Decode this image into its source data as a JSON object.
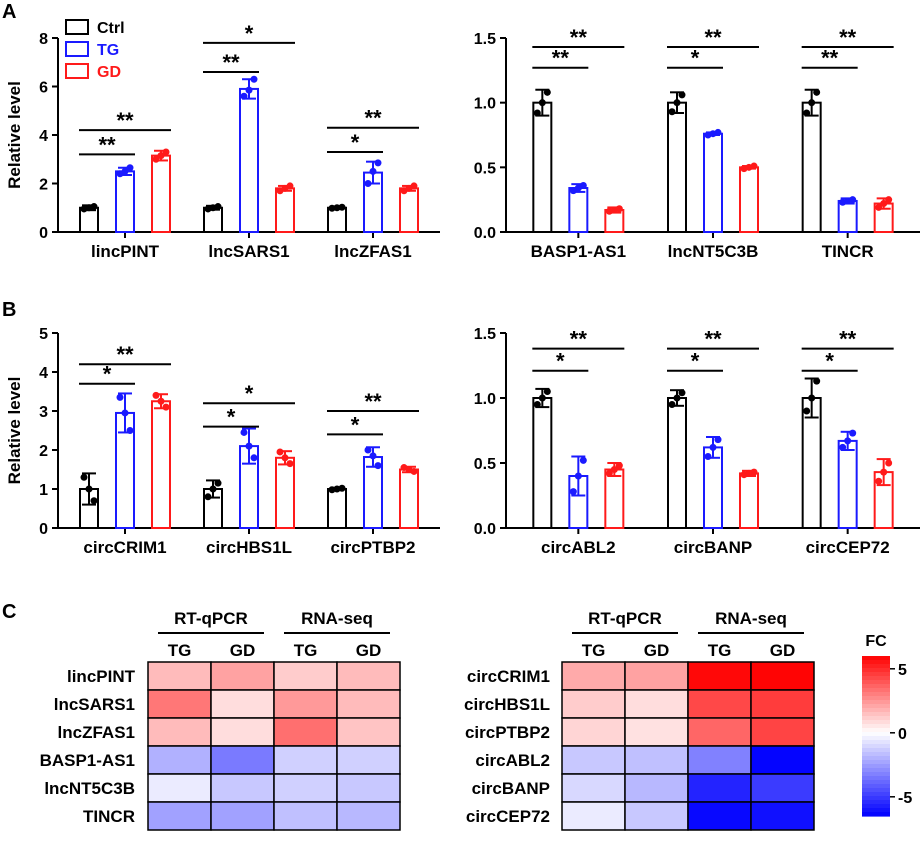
{
  "panels": {
    "a": "A",
    "b": "B",
    "c": "C"
  },
  "legend": {
    "items": [
      {
        "label": "Ctrl",
        "color": "#000000"
      },
      {
        "label": "TG",
        "color": "#1a1aff"
      },
      {
        "label": "GD",
        "color": "#ff1a1a"
      }
    ]
  },
  "chart_data": [
    {
      "type": "bar",
      "panel": "A",
      "side": "left",
      "ylabel": "Relative level",
      "ylim": [
        0,
        8
      ],
      "yticks": [
        "0",
        "2",
        "4",
        "6",
        "8"
      ],
      "categories": [
        "lincPINT",
        "lncSARS1",
        "lncZFAS1"
      ],
      "series": [
        {
          "name": "Ctrl",
          "values": [
            1.0,
            1.0,
            1.0
          ],
          "errors": [
            0.1,
            0.08,
            0.05
          ],
          "points": [
            [
              0.95,
              1.05,
              1.0
            ],
            [
              0.95,
              1.05,
              1.0
            ],
            [
              0.98,
              1.02,
              1.0
            ]
          ]
        },
        {
          "name": "TG",
          "values": [
            2.5,
            5.9,
            2.45
          ],
          "errors": [
            0.15,
            0.4,
            0.45
          ],
          "points": [
            [
              2.4,
              2.65,
              2.5
            ],
            [
              5.6,
              6.3,
              5.85
            ],
            [
              2.0,
              2.85,
              2.5
            ]
          ]
        },
        {
          "name": "GD",
          "values": [
            3.15,
            1.8,
            1.8
          ],
          "errors": [
            0.2,
            0.1,
            0.1
          ],
          "points": [
            [
              3.0,
              3.3,
              3.15
            ],
            [
              1.7,
              1.9,
              1.8
            ],
            [
              1.7,
              1.9,
              1.8
            ]
          ]
        }
      ],
      "significance": [
        {
          "cat": 0,
          "from": 0,
          "to": 1,
          "level": 3.2,
          "label": "**"
        },
        {
          "cat": 0,
          "from": 0,
          "to": 2,
          "level": 4.2,
          "label": "**"
        },
        {
          "cat": 1,
          "from": 0,
          "to": 1,
          "level": 6.6,
          "label": "**"
        },
        {
          "cat": 1,
          "from": 0,
          "to": 2,
          "level": 7.8,
          "label": "*"
        },
        {
          "cat": 2,
          "from": 0,
          "to": 1,
          "level": 3.3,
          "label": "*"
        },
        {
          "cat": 2,
          "from": 0,
          "to": 2,
          "level": 4.3,
          "label": "**"
        }
      ]
    },
    {
      "type": "bar",
      "panel": "A",
      "side": "right",
      "ylabel": "",
      "ylim": [
        0,
        1.5
      ],
      "yticks": [
        "0.0",
        "0.5",
        "1.0",
        "1.5"
      ],
      "categories": [
        "BASP1-AS1",
        "lncNT5C3B",
        "TINCR"
      ],
      "series": [
        {
          "name": "Ctrl",
          "values": [
            1.0,
            1.0,
            1.0
          ],
          "errors": [
            0.1,
            0.08,
            0.1
          ],
          "points": [
            [
              0.92,
              1.08,
              1.0
            ],
            [
              0.93,
              1.06,
              1.0
            ],
            [
              0.92,
              1.08,
              1.0
            ]
          ]
        },
        {
          "name": "TG",
          "values": [
            0.34,
            0.76,
            0.24
          ],
          "errors": [
            0.03,
            0.01,
            0.02
          ],
          "points": [
            [
              0.32,
              0.36,
              0.34
            ],
            [
              0.75,
              0.77,
              0.76
            ],
            [
              0.23,
              0.25,
              0.24
            ]
          ]
        },
        {
          "name": "GD",
          "values": [
            0.17,
            0.5,
            0.22
          ],
          "errors": [
            0.02,
            0.01,
            0.04
          ],
          "points": [
            [
              0.16,
              0.18,
              0.17
            ],
            [
              0.49,
              0.51,
              0.5
            ],
            [
              0.19,
              0.25,
              0.22
            ]
          ]
        }
      ],
      "significance": [
        {
          "cat": 0,
          "from": 0,
          "to": 1,
          "level": 1.27,
          "label": "**"
        },
        {
          "cat": 0,
          "from": 0,
          "to": 2,
          "level": 1.43,
          "label": "**"
        },
        {
          "cat": 1,
          "from": 0,
          "to": 1,
          "level": 1.27,
          "label": "*"
        },
        {
          "cat": 1,
          "from": 0,
          "to": 2,
          "level": 1.43,
          "label": "**"
        },
        {
          "cat": 2,
          "from": 0,
          "to": 1,
          "level": 1.27,
          "label": "**"
        },
        {
          "cat": 2,
          "from": 0,
          "to": 2,
          "level": 1.43,
          "label": "**"
        }
      ]
    },
    {
      "type": "bar",
      "panel": "B",
      "side": "left",
      "ylabel": "Relative level",
      "ylim": [
        0,
        5
      ],
      "yticks": [
        "0",
        "1",
        "2",
        "3",
        "4",
        "5"
      ],
      "categories": [
        "circCRIM1",
        "circHBS1L",
        "circPTBP2"
      ],
      "series": [
        {
          "name": "Ctrl",
          "values": [
            1.0,
            1.0,
            1.0
          ],
          "errors": [
            0.4,
            0.22,
            0.03
          ],
          "points": [
            [
              1.3,
              0.7,
              1.0
            ],
            [
              0.8,
              1.15,
              1.0
            ],
            [
              0.98,
              1.02,
              1.0
            ]
          ]
        },
        {
          "name": "TG",
          "values": [
            2.95,
            2.1,
            1.82
          ],
          "errors": [
            0.5,
            0.45,
            0.25
          ],
          "points": [
            [
              3.35,
              2.5,
              2.95
            ],
            [
              2.45,
              1.8,
              2.1
            ],
            [
              2.0,
              1.6,
              1.85
            ]
          ]
        },
        {
          "name": "GD",
          "values": [
            3.25,
            1.8,
            1.5
          ],
          "errors": [
            0.18,
            0.17,
            0.07
          ],
          "points": [
            [
              3.4,
              3.1,
              3.25
            ],
            [
              1.95,
              1.65,
              1.8
            ],
            [
              1.55,
              1.45,
              1.5
            ]
          ]
        }
      ],
      "significance": [
        {
          "cat": 0,
          "from": 0,
          "to": 1,
          "level": 3.7,
          "label": "*"
        },
        {
          "cat": 0,
          "from": 0,
          "to": 2,
          "level": 4.2,
          "label": "**"
        },
        {
          "cat": 1,
          "from": 0,
          "to": 1,
          "level": 2.6,
          "label": "*"
        },
        {
          "cat": 1,
          "from": 0,
          "to": 2,
          "level": 3.2,
          "label": "*"
        },
        {
          "cat": 2,
          "from": 0,
          "to": 1,
          "level": 2.4,
          "label": "*"
        },
        {
          "cat": 2,
          "from": 0,
          "to": 2,
          "level": 3.0,
          "label": "**"
        }
      ]
    },
    {
      "type": "bar",
      "panel": "B",
      "side": "right",
      "ylabel": "",
      "ylim": [
        0,
        1.5
      ],
      "yticks": [
        "0.0",
        "0.5",
        "1.0",
        "1.5"
      ],
      "categories": [
        "circABL2",
        "circBANP",
        "circCEP72"
      ],
      "series": [
        {
          "name": "Ctrl",
          "values": [
            1.0,
            1.0,
            1.0
          ],
          "errors": [
            0.07,
            0.06,
            0.15
          ],
          "points": [
            [
              0.95,
              1.05,
              1.0
            ],
            [
              0.95,
              1.04,
              1.0
            ],
            [
              0.9,
              1.13,
              1.0
            ]
          ]
        },
        {
          "name": "TG",
          "values": [
            0.4,
            0.62,
            0.67
          ],
          "errors": [
            0.15,
            0.08,
            0.07
          ],
          "points": [
            [
              0.28,
              0.52,
              0.4
            ],
            [
              0.55,
              0.68,
              0.62
            ],
            [
              0.62,
              0.73,
              0.67
            ]
          ]
        },
        {
          "name": "GD",
          "values": [
            0.45,
            0.42,
            0.43
          ],
          "errors": [
            0.05,
            0.02,
            0.1
          ],
          "points": [
            [
              0.42,
              0.48,
              0.45
            ],
            [
              0.41,
              0.43,
              0.42
            ],
            [
              0.36,
              0.5,
              0.43
            ]
          ]
        }
      ],
      "significance": [
        {
          "cat": 0,
          "from": 0,
          "to": 1,
          "level": 1.21,
          "label": "*"
        },
        {
          "cat": 0,
          "from": 0,
          "to": 2,
          "level": 1.38,
          "label": "**"
        },
        {
          "cat": 1,
          "from": 0,
          "to": 1,
          "level": 1.21,
          "label": "*"
        },
        {
          "cat": 1,
          "from": 0,
          "to": 2,
          "level": 1.38,
          "label": "**"
        },
        {
          "cat": 2,
          "from": 0,
          "to": 1,
          "level": 1.21,
          "label": "*"
        },
        {
          "cat": 2,
          "from": 0,
          "to": 2,
          "level": 1.38,
          "label": "**"
        }
      ]
    },
    {
      "type": "heatmap",
      "panel": "C",
      "side": "left",
      "groups": [
        "RT-qPCR",
        "RNA-seq"
      ],
      "columns": [
        "TG",
        "GD",
        "TG",
        "GD"
      ],
      "rows": [
        "lincPINT",
        "lncSARS1",
        "lncZFAS1",
        "BASP1-AS1",
        "lncNT5C3B",
        "TINCR"
      ],
      "values": [
        [
          1.6,
          2.2,
          1.2,
          1.6
        ],
        [
          3.2,
          0.8,
          2.4,
          1.6
        ],
        [
          1.6,
          0.8,
          3.4,
          1.4
        ],
        [
          -2.0,
          -3.4,
          -1.2,
          -1.2
        ],
        [
          -0.5,
          -1.4,
          -1.2,
          -1.4
        ],
        [
          -2.4,
          -2.4,
          -1.6,
          -1.8
        ]
      ]
    },
    {
      "type": "heatmap",
      "panel": "C",
      "side": "right",
      "groups": [
        "RT-qPCR",
        "RNA-seq"
      ],
      "columns": [
        "TG",
        "GD",
        "TG",
        "GD"
      ],
      "rows": [
        "circCRIM1",
        "circHBS1L",
        "circPTBP2",
        "circABL2",
        "circBANP",
        "circCEP72"
      ],
      "values": [
        [
          2.0,
          2.2,
          5.8,
          5.9
        ],
        [
          1.2,
          0.8,
          4.3,
          4.6
        ],
        [
          1.0,
          0.7,
          3.6,
          4.4
        ],
        [
          -1.4,
          -1.6,
          -3.2,
          -6.4
        ],
        [
          -1.0,
          -1.8,
          -5.6,
          -5.0
        ],
        [
          -0.5,
          -1.4,
          -6.3,
          -6.1
        ]
      ]
    }
  ],
  "colorbar": {
    "title": "FC",
    "ticks": [
      "5",
      "0",
      "-5"
    ],
    "range": [
      -6.5,
      6
    ]
  }
}
